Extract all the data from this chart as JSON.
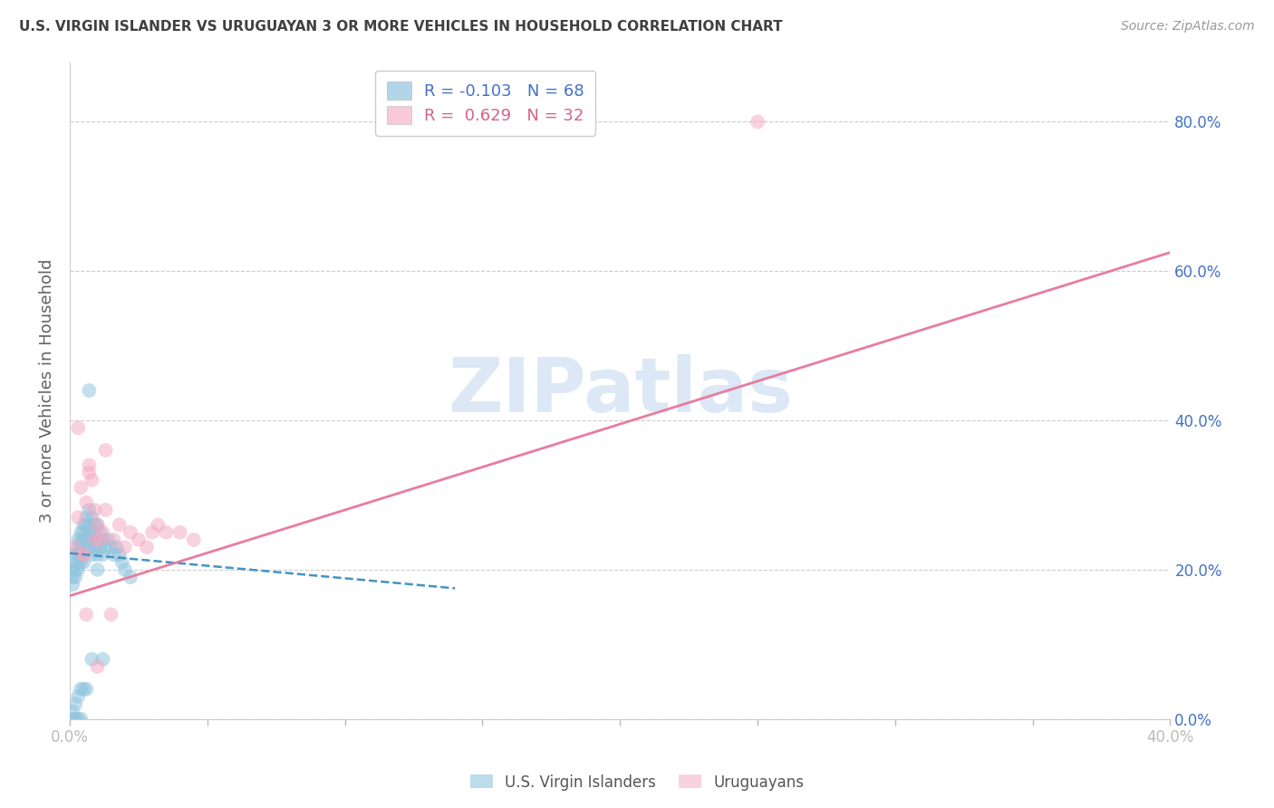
{
  "title": "U.S. VIRGIN ISLANDER VS URUGUAYAN 3 OR MORE VEHICLES IN HOUSEHOLD CORRELATION CHART",
  "source": "Source: ZipAtlas.com",
  "ylabel": "3 or more Vehicles in Household",
  "xlim": [
    0.0,
    0.4
  ],
  "ylim": [
    0.0,
    0.88
  ],
  "yticks": [
    0.0,
    0.2,
    0.4,
    0.6,
    0.8
  ],
  "ytick_labels": [
    "0.0%",
    "20.0%",
    "40.0%",
    "60.0%",
    "80.0%"
  ],
  "xticks": [
    0.0,
    0.05,
    0.1,
    0.15,
    0.2,
    0.25,
    0.3,
    0.35,
    0.4
  ],
  "xtick_labels": [
    "0.0%",
    "",
    "",
    "",
    "",
    "",
    "",
    "",
    "40.0%"
  ],
  "legend_blue_r": "-0.103",
  "legend_blue_n": "68",
  "legend_pink_r": "0.629",
  "legend_pink_n": "32",
  "blue_color": "#92c5de",
  "pink_color": "#f4a6c0",
  "blue_line_color": "#4393c3",
  "pink_line_color": "#e87ca0",
  "watermark": "ZIPatlas",
  "watermark_color": "#dce8f5",
  "title_color": "#404040",
  "axis_label_color": "#606060",
  "right_tick_color": "#4472c4",
  "blue_scatter_x": [
    0.001,
    0.001,
    0.001,
    0.002,
    0.002,
    0.002,
    0.002,
    0.003,
    0.003,
    0.003,
    0.003,
    0.003,
    0.004,
    0.004,
    0.004,
    0.004,
    0.004,
    0.005,
    0.005,
    0.005,
    0.005,
    0.005,
    0.005,
    0.006,
    0.006,
    0.006,
    0.006,
    0.007,
    0.007,
    0.007,
    0.007,
    0.008,
    0.008,
    0.008,
    0.008,
    0.009,
    0.009,
    0.009,
    0.01,
    0.01,
    0.01,
    0.011,
    0.011,
    0.012,
    0.012,
    0.013,
    0.014,
    0.015,
    0.016,
    0.017,
    0.018,
    0.019,
    0.02,
    0.022,
    0.001,
    0.002,
    0.003,
    0.004,
    0.005,
    0.006,
    0.007,
    0.008,
    0.01,
    0.012,
    0.002,
    0.003,
    0.004,
    0.001
  ],
  "blue_scatter_y": [
    0.2,
    0.19,
    0.18,
    0.22,
    0.21,
    0.2,
    0.19,
    0.24,
    0.23,
    0.22,
    0.21,
    0.2,
    0.25,
    0.24,
    0.23,
    0.22,
    0.21,
    0.26,
    0.25,
    0.24,
    0.23,
    0.22,
    0.21,
    0.27,
    0.26,
    0.24,
    0.23,
    0.28,
    0.26,
    0.25,
    0.23,
    0.27,
    0.25,
    0.24,
    0.22,
    0.26,
    0.25,
    0.23,
    0.26,
    0.24,
    0.22,
    0.25,
    0.23,
    0.24,
    0.22,
    0.23,
    0.24,
    0.23,
    0.22,
    0.23,
    0.22,
    0.21,
    0.2,
    0.19,
    0.01,
    0.02,
    0.03,
    0.04,
    0.04,
    0.04,
    0.44,
    0.08,
    0.2,
    0.08,
    0.0,
    0.0,
    0.0,
    0.0
  ],
  "pink_scatter_x": [
    0.002,
    0.003,
    0.004,
    0.005,
    0.006,
    0.007,
    0.008,
    0.009,
    0.01,
    0.011,
    0.012,
    0.013,
    0.015,
    0.016,
    0.018,
    0.02,
    0.022,
    0.025,
    0.028,
    0.03,
    0.032,
    0.035,
    0.04,
    0.045,
    0.25,
    0.005,
    0.007,
    0.009,
    0.01,
    0.013,
    0.003,
    0.006
  ],
  "pink_scatter_y": [
    0.23,
    0.27,
    0.31,
    0.22,
    0.29,
    0.33,
    0.32,
    0.28,
    0.26,
    0.24,
    0.25,
    0.28,
    0.14,
    0.24,
    0.26,
    0.23,
    0.25,
    0.24,
    0.23,
    0.25,
    0.26,
    0.25,
    0.25,
    0.24,
    0.8,
    0.22,
    0.34,
    0.24,
    0.07,
    0.36,
    0.39,
    0.14
  ],
  "blue_trendline_x": [
    0.0,
    0.14
  ],
  "blue_trendline_y": [
    0.222,
    0.175
  ],
  "pink_trendline_x": [
    0.0,
    0.4
  ],
  "pink_trendline_y": [
    0.165,
    0.625
  ]
}
